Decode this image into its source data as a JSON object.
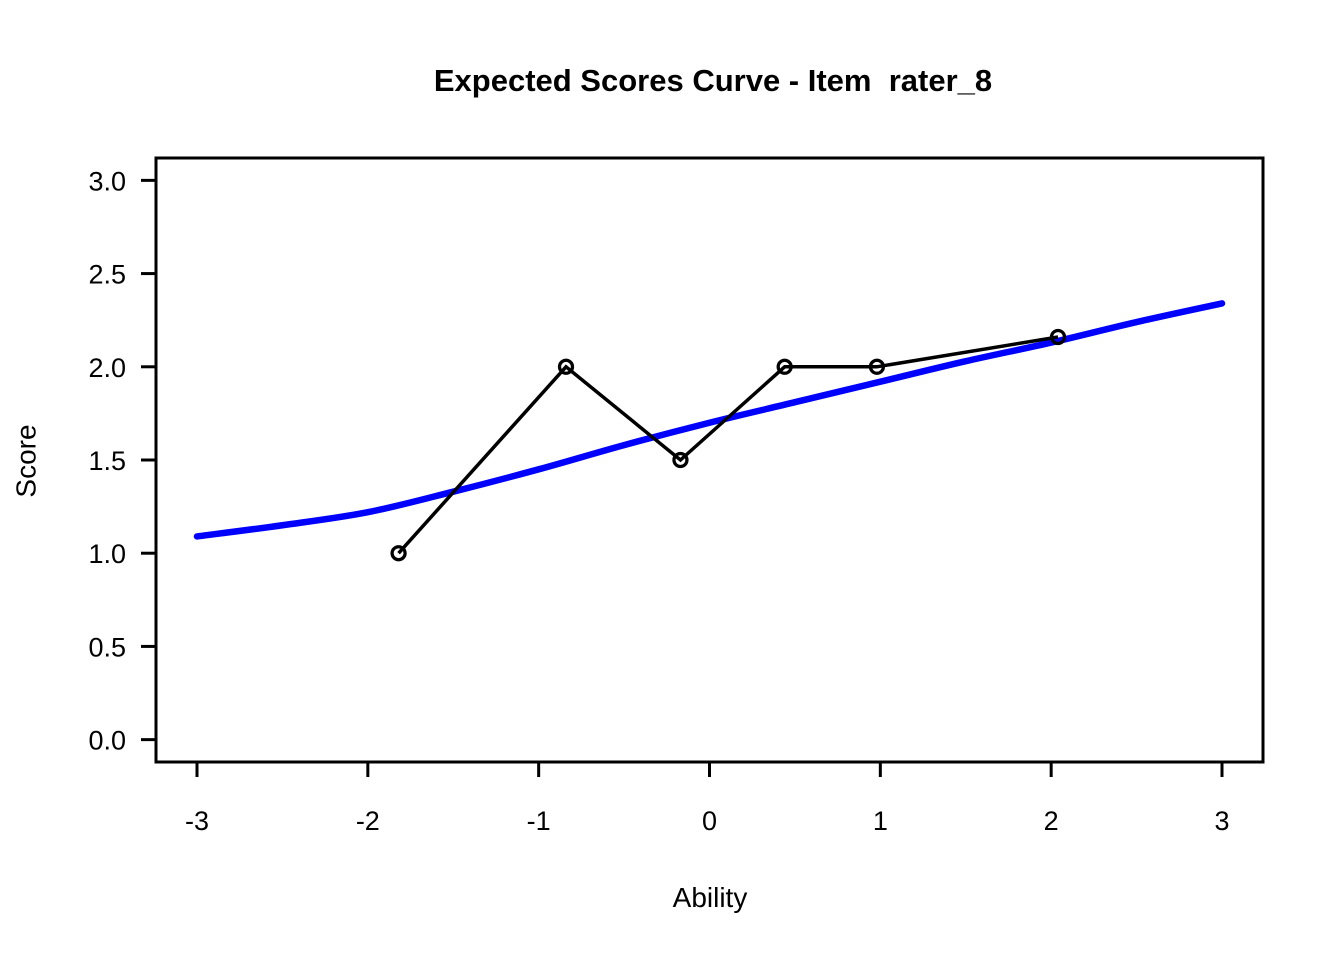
{
  "figure": {
    "background_color": "#ffffff",
    "foreground_color": "#000000"
  },
  "chart_data": {
    "type": "line",
    "title": "Expected Scores Curve - Item  rater_8",
    "xlabel": "Ability",
    "ylabel": "Score",
    "xlim": [
      -3,
      3
    ],
    "ylim": [
      0,
      3
    ],
    "grid": false,
    "legend": "none",
    "x_ticks": [
      -3,
      -2,
      -1,
      0,
      1,
      2,
      3
    ],
    "x_tick_labels": [
      "-3",
      "-2",
      "-1",
      "0",
      "1",
      "2",
      "3"
    ],
    "y_ticks": [
      0,
      0.5,
      1,
      1.5,
      2,
      2.5,
      3
    ],
    "y_tick_labels": [
      "0.0",
      "0.5",
      "1.0",
      "1.5",
      "2.0",
      "2.5",
      "3.0"
    ],
    "series": [
      {
        "name": "expected-score-curve",
        "style": "smooth-line",
        "color": "#0000ff",
        "line_width": 6.5,
        "points": [
          [
            -3.0,
            1.09
          ],
          [
            -2.5,
            1.15
          ],
          [
            -2.0,
            1.22
          ],
          [
            -1.5,
            1.33
          ],
          [
            -1.0,
            1.45
          ],
          [
            -0.5,
            1.58
          ],
          [
            0.0,
            1.7
          ],
          [
            0.5,
            1.81
          ],
          [
            1.0,
            1.92
          ],
          [
            1.5,
            2.03
          ],
          [
            2.0,
            2.13
          ],
          [
            2.5,
            2.24
          ],
          [
            3.0,
            2.34
          ]
        ]
      },
      {
        "name": "observed-scores",
        "style": "line-with-markers",
        "color": "#000000",
        "marker": "open-circle",
        "line_width": 3.5,
        "points": [
          [
            -1.82,
            1.0
          ],
          [
            -0.84,
            2.0
          ],
          [
            -0.17,
            1.5
          ],
          [
            0.44,
            2.0
          ],
          [
            0.98,
            2.0
          ],
          [
            2.04,
            2.16
          ]
        ]
      }
    ]
  }
}
